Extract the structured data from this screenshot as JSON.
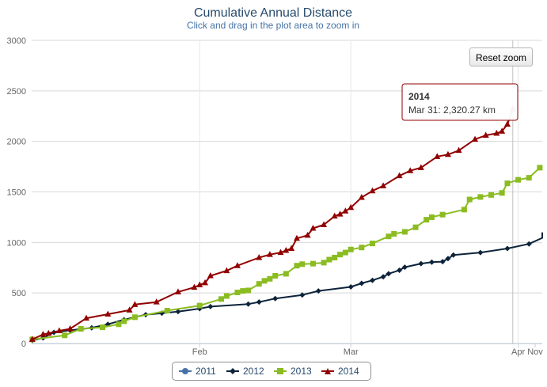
{
  "chart_data": {
    "type": "line",
    "title": "Cumulative Annual Distance",
    "subtitle": "Click and drag in the plot area to zoom in",
    "ylim": [
      0,
      3000
    ],
    "y_ticks": [
      "0",
      "500",
      "1000",
      "1500",
      "2000",
      "2500",
      "3000"
    ],
    "x_ticks": [
      "Feb",
      "Mar",
      "Apr",
      "Nov"
    ],
    "grid": true,
    "legend_position": "bottom",
    "series": [
      {
        "name": "2011",
        "color": "#4572A7",
        "marker": "circle",
        "points": []
      },
      {
        "name": "2012",
        "color": "#0d233a",
        "marker": "diamond",
        "points": [
          [
            "Jan 1",
            30
          ],
          [
            "Jan 3",
            55
          ],
          [
            "Jan 5",
            110
          ],
          [
            "Jan 8",
            130
          ],
          [
            "Jan 12",
            155
          ],
          [
            "Jan 15",
            190
          ],
          [
            "Jan 18",
            235
          ],
          [
            "Jan 22",
            285
          ],
          [
            "Jan 25",
            300
          ],
          [
            "Jan 28",
            315
          ],
          [
            "Feb 1",
            345
          ],
          [
            "Feb 3",
            365
          ],
          [
            "Feb 10",
            390
          ],
          [
            "Feb 12",
            410
          ],
          [
            "Feb 15",
            445
          ],
          [
            "Feb 20",
            480
          ],
          [
            "Feb 23",
            520
          ],
          [
            "Mar 1",
            560
          ],
          [
            "Mar 3",
            595
          ],
          [
            "Mar 5",
            625
          ],
          [
            "Mar 7",
            660
          ],
          [
            "Mar 8",
            690
          ],
          [
            "Mar 10",
            725
          ],
          [
            "Mar 11",
            755
          ],
          [
            "Mar 14",
            790
          ],
          [
            "Mar 16",
            805
          ],
          [
            "Mar 18",
            810
          ],
          [
            "Mar 19",
            840
          ],
          [
            "Mar 20",
            875
          ],
          [
            "Mar 25",
            900
          ],
          [
            "Mar 30",
            940
          ],
          [
            "Apr 3",
            985
          ],
          [
            "Apr 7",
            1045
          ],
          [
            "Apr 10",
            1100
          ]
        ]
      },
      {
        "name": "2013",
        "color": "#8bbc21",
        "marker": "square",
        "points": [
          [
            "Jan 1",
            40
          ],
          [
            "Jan 7",
            80
          ],
          [
            "Jan 10",
            145
          ],
          [
            "Jan 14",
            160
          ],
          [
            "Jan 17",
            190
          ],
          [
            "Jan 18",
            220
          ],
          [
            "Jan 20",
            260
          ],
          [
            "Jan 26",
            325
          ],
          [
            "Feb 1",
            375
          ],
          [
            "Feb 5",
            440
          ],
          [
            "Feb 6",
            470
          ],
          [
            "Feb 8",
            505
          ],
          [
            "Feb 9",
            520
          ],
          [
            "Feb 10",
            525
          ],
          [
            "Feb 12",
            590
          ],
          [
            "Feb 13",
            620
          ],
          [
            "Feb 14",
            640
          ],
          [
            "Feb 15",
            670
          ],
          [
            "Feb 17",
            690
          ],
          [
            "Feb 19",
            770
          ],
          [
            "Feb 20",
            785
          ],
          [
            "Feb 22",
            790
          ],
          [
            "Feb 24",
            800
          ],
          [
            "Feb 25",
            830
          ],
          [
            "Feb 26",
            850
          ],
          [
            "Feb 27",
            880
          ],
          [
            "Feb 28",
            900
          ],
          [
            "Mar 1",
            930
          ],
          [
            "Mar 3",
            950
          ],
          [
            "Mar 5",
            990
          ],
          [
            "Mar 8",
            1060
          ],
          [
            "Mar 9",
            1085
          ],
          [
            "Mar 11",
            1105
          ],
          [
            "Mar 13",
            1150
          ],
          [
            "Mar 15",
            1225
          ],
          [
            "Mar 16",
            1250
          ],
          [
            "Mar 18",
            1275
          ],
          [
            "Mar 22",
            1325
          ],
          [
            "Mar 23",
            1425
          ],
          [
            "Mar 25",
            1450
          ],
          [
            "Mar 27",
            1470
          ],
          [
            "Mar 29",
            1490
          ],
          [
            "Mar 30",
            1585
          ],
          [
            "Apr 1",
            1620
          ],
          [
            "Apr 3",
            1640
          ],
          [
            "Apr 5",
            1740
          ],
          [
            "Apr 9",
            1750
          ]
        ]
      },
      {
        "name": "2014",
        "color": "#910000",
        "marker": "triangle",
        "points": [
          [
            "Jan 1",
            40
          ],
          [
            "Jan 3",
            90
          ],
          [
            "Jan 4",
            100
          ],
          [
            "Jan 6",
            125
          ],
          [
            "Jan 8",
            145
          ],
          [
            "Jan 11",
            250
          ],
          [
            "Jan 15",
            290
          ],
          [
            "Jan 19",
            330
          ],
          [
            "Jan 20",
            385
          ],
          [
            "Jan 24",
            410
          ],
          [
            "Jan 28",
            510
          ],
          [
            "Jan 31",
            555
          ],
          [
            "Feb 1",
            580
          ],
          [
            "Feb 2",
            600
          ],
          [
            "Feb 3",
            670
          ],
          [
            "Feb 6",
            720
          ],
          [
            "Feb 8",
            770
          ],
          [
            "Feb 12",
            850
          ],
          [
            "Feb 14",
            880
          ],
          [
            "Feb 16",
            900
          ],
          [
            "Feb 17",
            920
          ],
          [
            "Feb 18",
            940
          ],
          [
            "Feb 19",
            1040
          ],
          [
            "Feb 21",
            1070
          ],
          [
            "Feb 22",
            1140
          ],
          [
            "Feb 24",
            1175
          ],
          [
            "Feb 26",
            1260
          ],
          [
            "Feb 27",
            1280
          ],
          [
            "Feb 28",
            1310
          ],
          [
            "Mar 1",
            1345
          ],
          [
            "Mar 3",
            1445
          ],
          [
            "Mar 5",
            1510
          ],
          [
            "Mar 7",
            1560
          ],
          [
            "Mar 10",
            1660
          ],
          [
            "Mar 12",
            1710
          ],
          [
            "Mar 14",
            1740
          ],
          [
            "Mar 17",
            1850
          ],
          [
            "Mar 19",
            1870
          ],
          [
            "Mar 21",
            1910
          ],
          [
            "Mar 24",
            2020
          ],
          [
            "Mar 26",
            2060
          ],
          [
            "Mar 28",
            2080
          ],
          [
            "Mar 29",
            2100
          ],
          [
            "Mar 30",
            2170
          ],
          [
            "Mar 31",
            2320.27
          ]
        ]
      }
    ]
  },
  "tooltip": {
    "title": "2014",
    "body": "Mar 31: 2,320.27 km"
  },
  "reset_zoom_label": "Reset zoom",
  "legend": [
    {
      "name": "2011",
      "color": "#4572A7",
      "marker": "circle"
    },
    {
      "name": "2012",
      "color": "#0d233a",
      "marker": "diamond"
    },
    {
      "name": "2013",
      "color": "#8bbc21",
      "marker": "square"
    },
    {
      "name": "2014",
      "color": "#910000",
      "marker": "triangle"
    }
  ]
}
